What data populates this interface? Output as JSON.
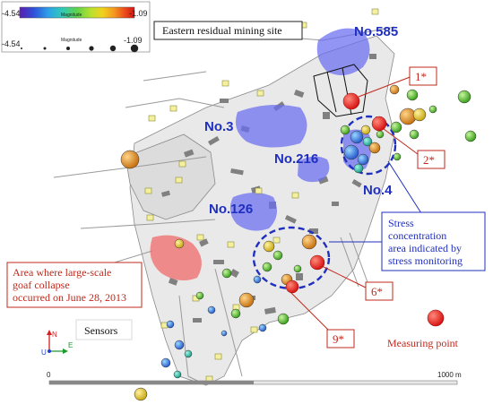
{
  "legend": {
    "min": "-4.54",
    "max": "-1.09",
    "magnitude_label": "Magnitude",
    "min2": "-4.54",
    "max2": "-1.09",
    "magnitude_label2": "Magnitude",
    "colors": [
      "#5b1fb0",
      "#2f4fd8",
      "#2ea0e8",
      "#2fc9b8",
      "#5fd24a",
      "#b7e02d",
      "#f0d21e",
      "#f49a1f",
      "#ec4f1a",
      "#d41414"
    ]
  },
  "labels": {
    "eastern_site": "Eastern residual mining site",
    "no585": "No.585",
    "no3": "No.3",
    "no216": "No.216",
    "no4": "No.4",
    "no126": "No.126",
    "p1": "1*",
    "p2": "2*",
    "p6": "6*",
    "p9": "9*",
    "stress": [
      "Stress",
      "concentration",
      "area indicated by",
      "stress monitoring"
    ],
    "collapse": [
      "Area where large-scale",
      "goaf collapse",
      "occurred on June 28, 2013"
    ],
    "sensors": "Sensors",
    "measuring_point": "Measuring point",
    "scale_start": "0",
    "scale_end": "1000 m",
    "compass": {
      "n": "N",
      "u": "U",
      "e": "E"
    }
  },
  "colors": {
    "annotation_blue": "#1f2fbf",
    "annotation_red": "#c0281c",
    "zone_blue": "#6a6cf0",
    "zone_red": "#f06a6a",
    "tunnel_gray": "#9a9a9a"
  }
}
